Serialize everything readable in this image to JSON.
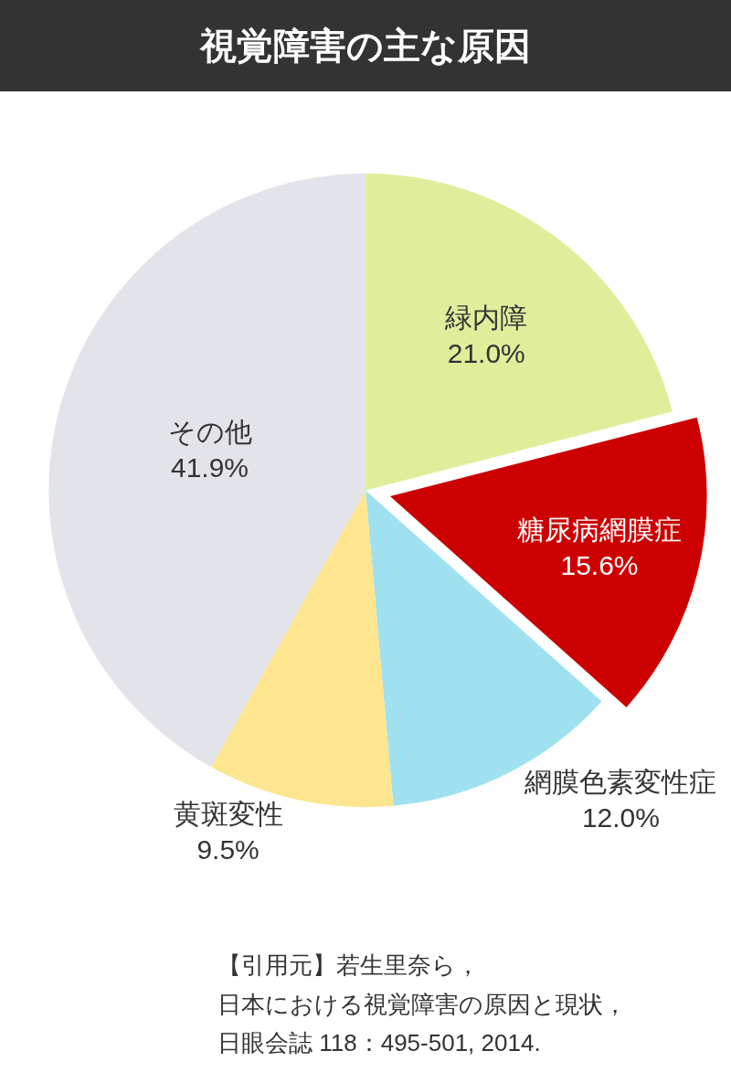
{
  "chart_data": {
    "type": "pie",
    "title": "視覚障害の主な原因",
    "categories": [
      "緑内障",
      "糖尿病網膜症",
      "網膜色素変性症",
      "黄斑変性",
      "その他"
    ],
    "values": [
      21.0,
      15.6,
      12.0,
      9.5,
      41.9
    ],
    "value_labels": [
      "21.0%",
      "15.6%",
      "12.0%",
      "9.5%",
      "41.9%"
    ],
    "colors": [
      "#e0ee9c",
      "#cc0000",
      "#a0e1f0",
      "#fde68f",
      "#e3e4e9"
    ],
    "legend": false,
    "annotations": [
      "【引用元】若生里奈ら，",
      "日本における視覚障害の原因と現状，",
      "日眼会誌 118：495-501, 2014."
    ]
  }
}
